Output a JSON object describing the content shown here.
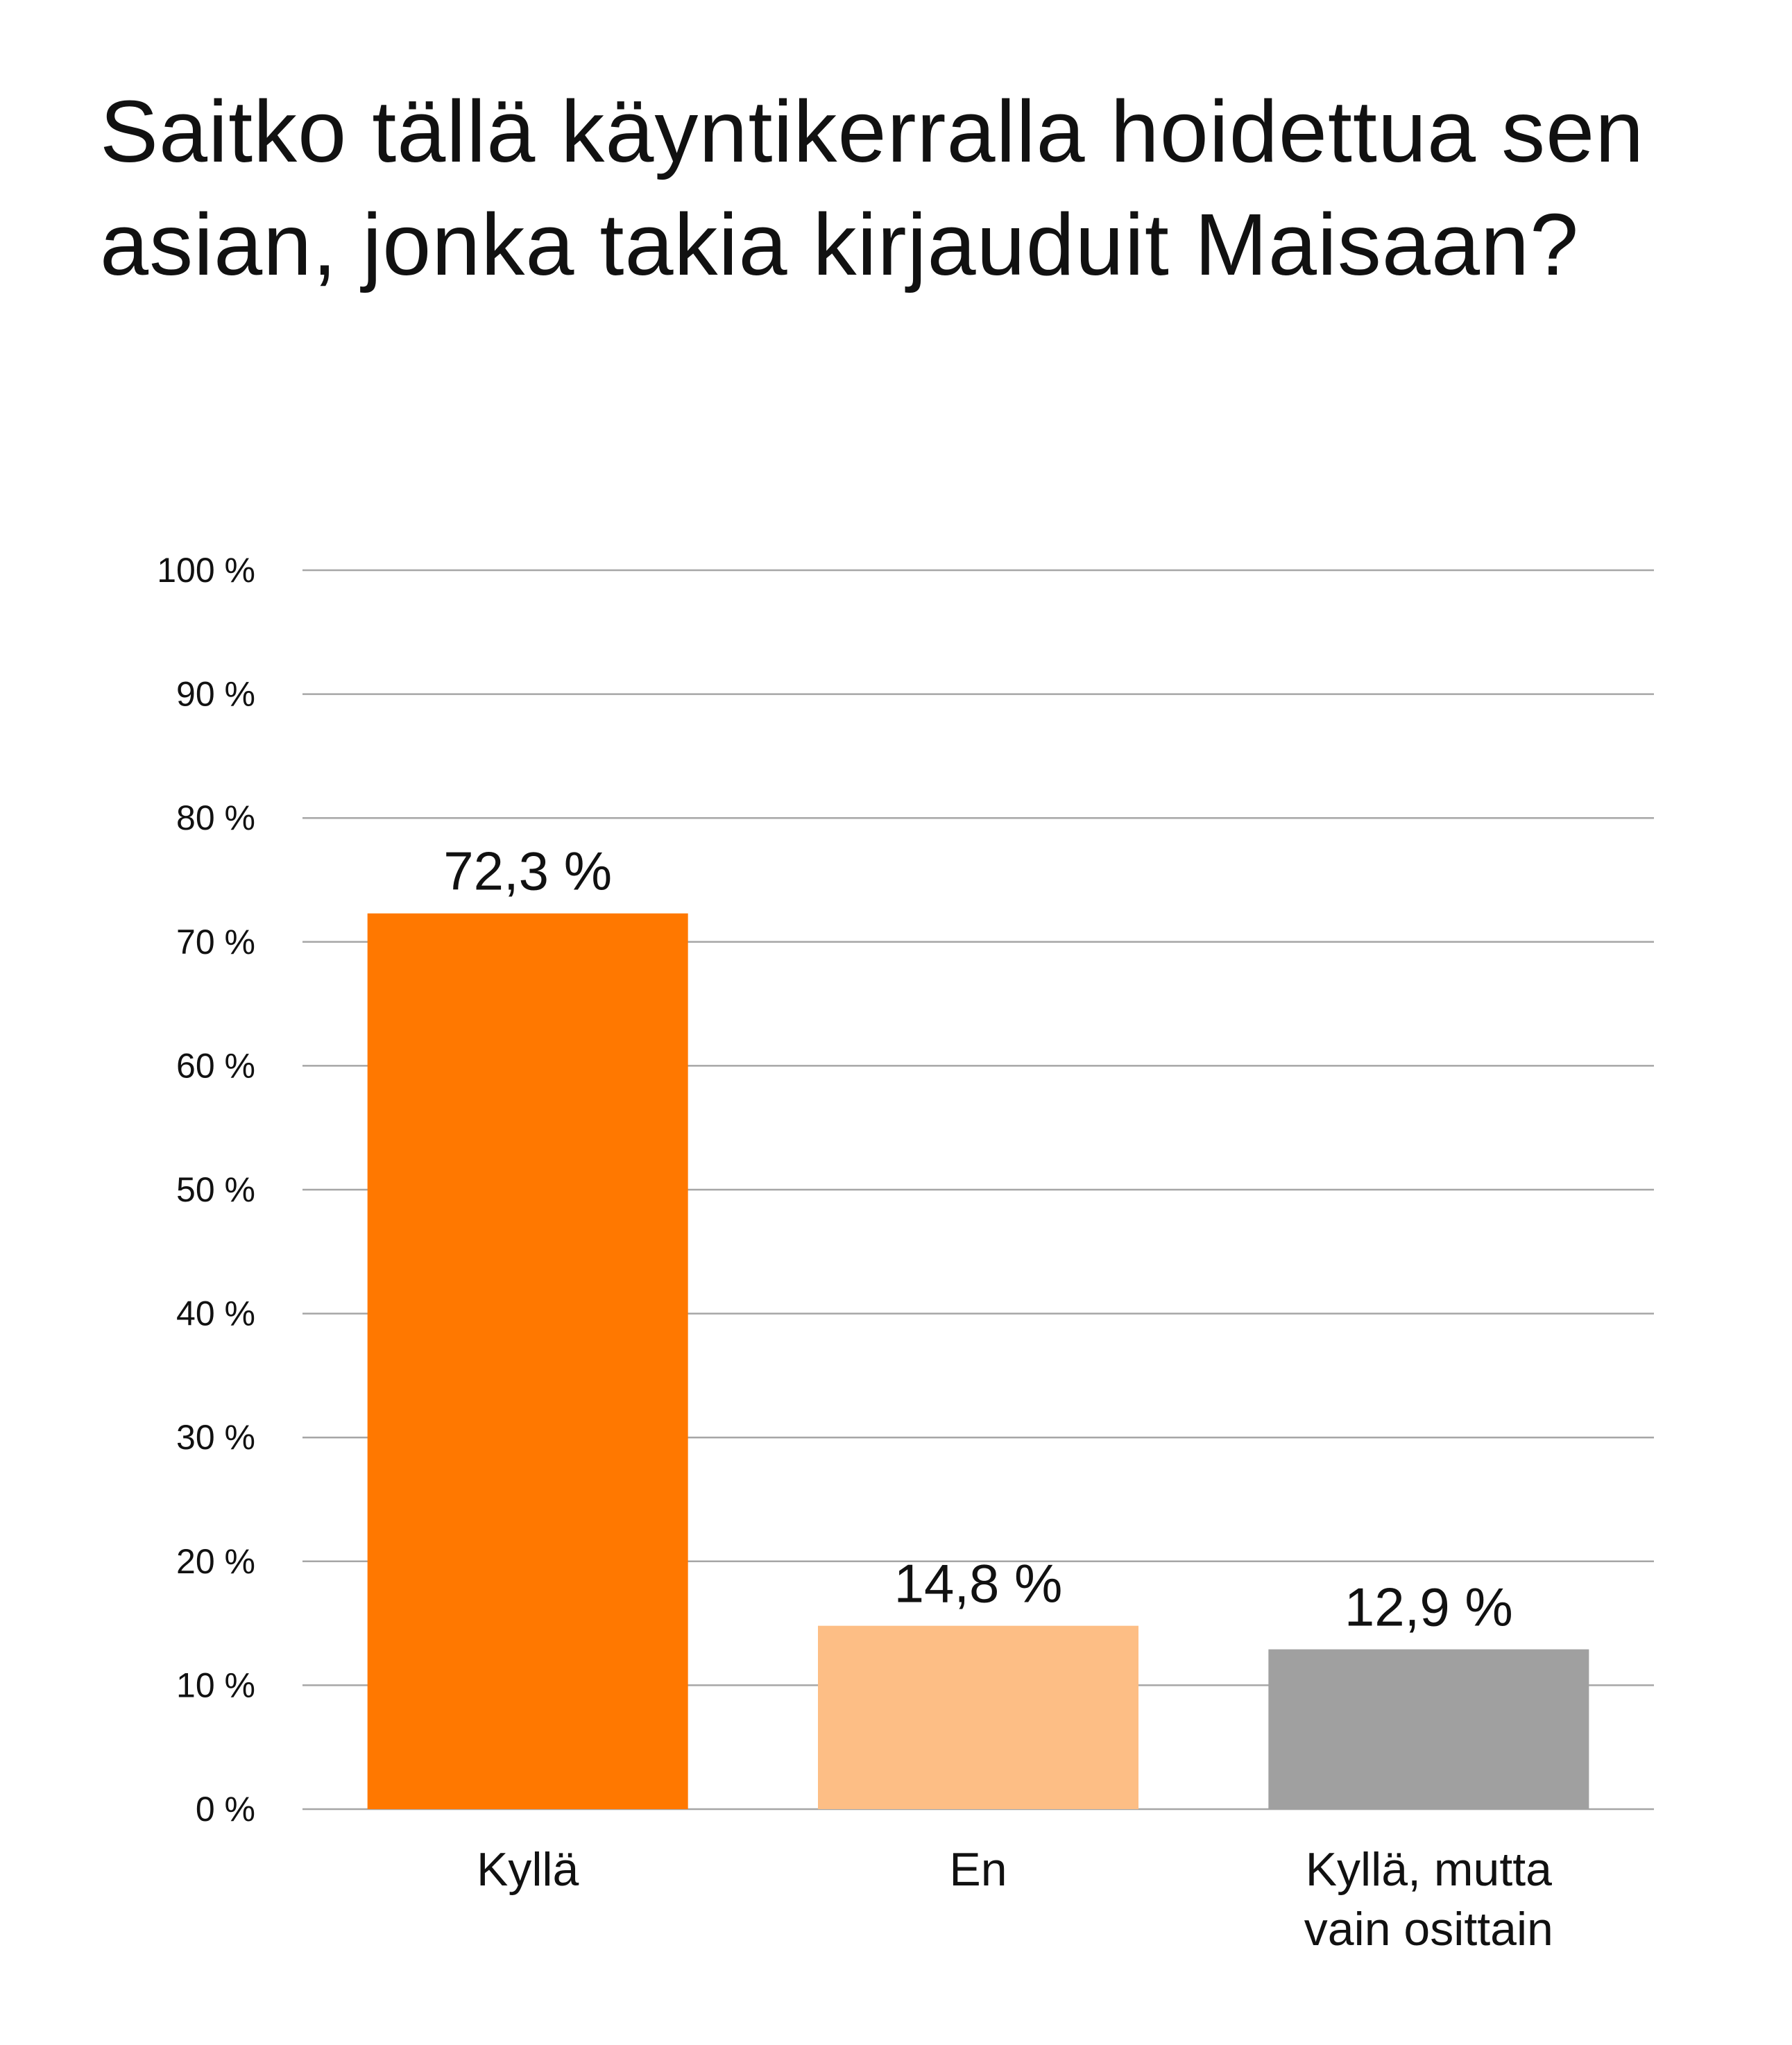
{
  "chart_data": {
    "type": "bar",
    "title": "Saitko tällä käyntikerralla hoidettua sen asian, jonka takia kirjauduit Maisaan?",
    "categories": [
      "Kyllä",
      "En",
      "Kyllä, mutta vain osittain"
    ],
    "category_lines": [
      [
        "Kyllä"
      ],
      [
        "En"
      ],
      [
        "Kyllä, mutta",
        "vain osittain"
      ]
    ],
    "values": [
      72.3,
      14.8,
      12.9
    ],
    "data_labels": [
      "72,3 %",
      "14,8 %",
      "12,9 %"
    ],
    "bar_colors": [
      "#FF7800",
      "#FDBE85",
      "#A0A0A0"
    ],
    "ylim": [
      0,
      100
    ],
    "yticks": [
      0,
      10,
      20,
      30,
      40,
      50,
      60,
      70,
      80,
      90,
      100
    ],
    "ytick_labels": [
      "0 %",
      "10 %",
      "20 %",
      "30 %",
      "40 %",
      "50 %",
      "60 %",
      "70 %",
      "80 %",
      "90 %",
      "100 %"
    ],
    "grid": true,
    "legend": "none",
    "xlabel": "",
    "ylabel": ""
  }
}
